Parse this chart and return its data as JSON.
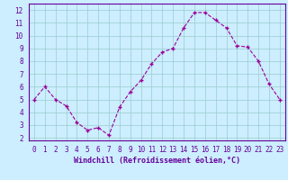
{
  "x": [
    0,
    1,
    2,
    3,
    4,
    5,
    6,
    7,
    8,
    9,
    10,
    11,
    12,
    13,
    14,
    15,
    16,
    17,
    18,
    19,
    20,
    21,
    22,
    23
  ],
  "y": [
    5.0,
    6.0,
    5.0,
    4.5,
    3.2,
    2.6,
    2.8,
    2.2,
    4.4,
    5.6,
    6.5,
    7.8,
    8.7,
    9.0,
    10.6,
    11.8,
    11.8,
    11.2,
    10.6,
    9.2,
    9.1,
    8.0,
    6.2,
    5.0
  ],
  "line_color": "#990099",
  "marker": "+",
  "markersize": 3.5,
  "linewidth": 0.8,
  "xlabel": "Windchill (Refroidissement éolien,°C)",
  "xlabel_fontsize": 6.0,
  "background_color": "#cceeff",
  "grid_color": "#99cccc",
  "xlim": [
    -0.5,
    23.5
  ],
  "ylim": [
    1.8,
    12.5
  ],
  "yticks": [
    2,
    3,
    4,
    5,
    6,
    7,
    8,
    9,
    10,
    11,
    12
  ],
  "xticks": [
    0,
    1,
    2,
    3,
    4,
    5,
    6,
    7,
    8,
    9,
    10,
    11,
    12,
    13,
    14,
    15,
    16,
    17,
    18,
    19,
    20,
    21,
    22,
    23
  ],
  "tick_fontsize": 5.5,
  "spine_color": "#660099",
  "text_color": "#660099"
}
